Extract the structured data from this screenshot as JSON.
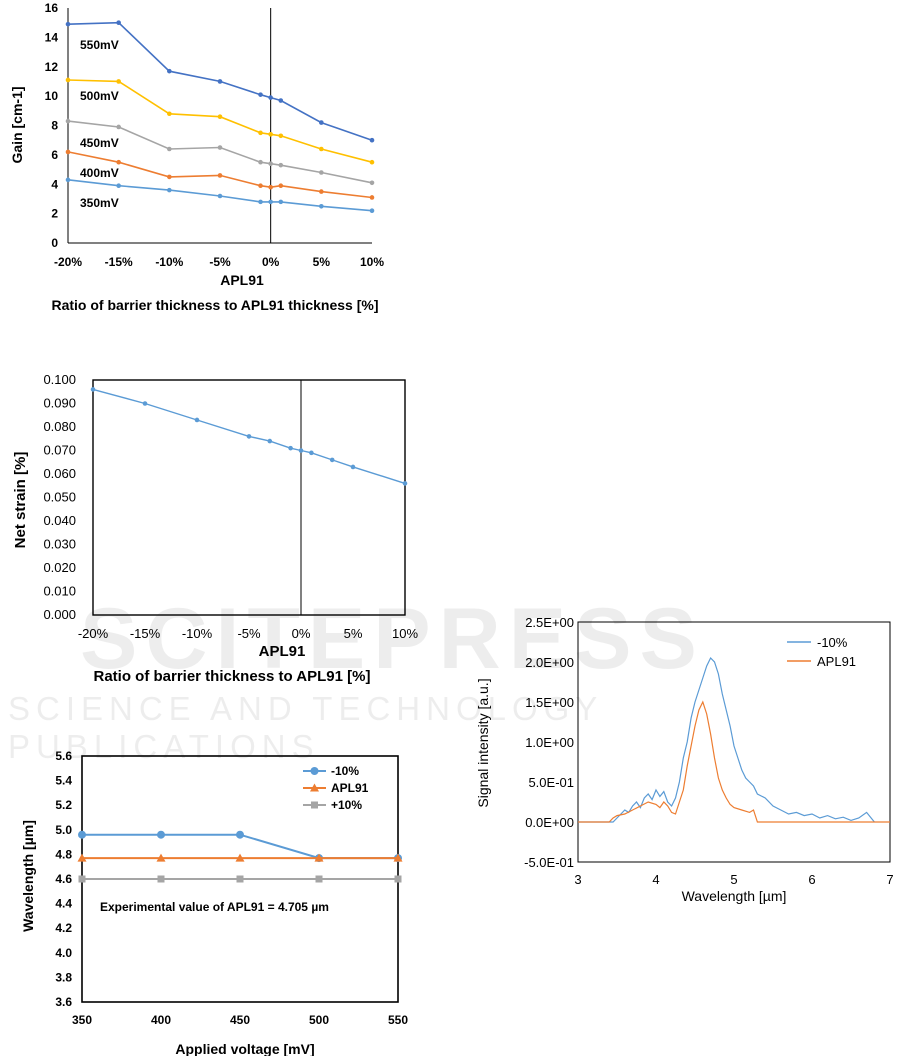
{
  "watermark": {
    "main": "SCITEPRESS",
    "sub": "SCIENCE AND TECHNOLOGY PUBLICATIONS"
  },
  "chart_data": [
    {
      "type": "line",
      "xlabel": "APL91",
      "caption": "Ratio of barrier thickness to APL91 thickness  [%]",
      "ylabel": "Gain [cm-1]",
      "xlim": [
        -20,
        10
      ],
      "ylim": [
        0,
        16
      ],
      "x_ticks": [
        "-20%",
        "-15%",
        "-10%",
        "-5%",
        "0%",
        "5%",
        "10%"
      ],
      "y_ticks": [
        "0",
        "2",
        "4",
        "6",
        "8",
        "10",
        "12",
        "14",
        "16"
      ],
      "reference_line_x": 0,
      "x": [
        -20,
        -15,
        -10,
        -5,
        -1,
        0,
        1,
        5,
        10
      ],
      "series": [
        {
          "name": "550mV",
          "color": "#4472C4",
          "values": [
            14.9,
            15.0,
            11.7,
            11.0,
            10.1,
            9.9,
            9.7,
            8.2,
            7.0
          ]
        },
        {
          "name": "500mV",
          "color": "#FFC000",
          "values": [
            11.1,
            11.0,
            8.8,
            8.6,
            7.5,
            7.4,
            7.3,
            6.4,
            5.5
          ]
        },
        {
          "name": "450mV",
          "color": "#A5A5A5",
          "values": [
            8.3,
            7.9,
            6.4,
            6.5,
            5.5,
            5.4,
            5.3,
            4.8,
            4.1
          ]
        },
        {
          "name": "400mV",
          "color": "#ED7D31",
          "values": [
            6.2,
            5.5,
            4.5,
            4.6,
            3.9,
            3.8,
            3.9,
            3.5,
            3.1
          ]
        },
        {
          "name": "350mV",
          "color": "#5B9BD5",
          "values": [
            4.3,
            3.9,
            3.6,
            3.2,
            2.8,
            2.8,
            2.8,
            2.5,
            2.2
          ]
        }
      ]
    },
    {
      "type": "line",
      "xlabel": "APL91",
      "caption": "Ratio of barrier thickness to APL91 [%]",
      "ylabel": "Net strain [%]",
      "xlim": [
        -20,
        10
      ],
      "ylim": [
        0,
        0.1
      ],
      "x_ticks": [
        "-20%",
        "-15%",
        "-10%",
        "-5%",
        "0%",
        "5%",
        "10%"
      ],
      "y_ticks": [
        "0.000",
        "0.010",
        "0.020",
        "0.030",
        "0.040",
        "0.050",
        "0.060",
        "0.070",
        "0.080",
        "0.090",
        "0.100"
      ],
      "reference_line_x": 0,
      "x": [
        -20,
        -15,
        -10,
        -5,
        -3,
        -1,
        0,
        1,
        3,
        5,
        10
      ],
      "series": [
        {
          "color": "#5B9BD5",
          "values": [
            0.096,
            0.09,
            0.083,
            0.076,
            0.074,
            0.071,
            0.07,
            0.069,
            0.066,
            0.063,
            0.056
          ]
        }
      ]
    },
    {
      "type": "line",
      "xlabel": "Applied voltage [mV]",
      "ylabel": "Wavelength [µm]",
      "xlim": [
        350,
        550
      ],
      "ylim": [
        3.6,
        5.6
      ],
      "x_ticks": [
        "350",
        "400",
        "450",
        "500",
        "550"
      ],
      "y_ticks": [
        "3.6",
        "3.8",
        "4.0",
        "4.2",
        "4.4",
        "4.6",
        "4.8",
        "5.0",
        "5.2",
        "5.4",
        "5.6"
      ],
      "annotation": "Experimental value of APL91  = 4.705 µm",
      "legend": "top-right",
      "x": [
        350,
        400,
        450,
        500,
        550
      ],
      "series": [
        {
          "name": "-10%",
          "color": "#5B9BD5",
          "marker": "circle",
          "values": [
            4.96,
            4.96,
            4.96,
            4.77,
            4.77
          ]
        },
        {
          "name": "APL91",
          "color": "#ED7D31",
          "marker": "triangle",
          "values": [
            4.77,
            4.77,
            4.77,
            4.77,
            4.77
          ]
        },
        {
          "name": "+10%",
          "color": "#A5A5A5",
          "marker": "square",
          "values": [
            4.6,
            4.6,
            4.6,
            4.6,
            4.6
          ]
        }
      ]
    },
    {
      "type": "line",
      "xlabel": "Wavelength [µm]",
      "ylabel": "Signal intensity [a.u.]",
      "xlim": [
        3,
        7
      ],
      "ylim": [
        -0.5,
        2.5
      ],
      "x_ticks": [
        "3",
        "4",
        "5",
        "6",
        "7"
      ],
      "y_ticks": [
        "-5.0E-01",
        "0.0E+00",
        "5.0E-01",
        "1.0E+00",
        "1.5E+00",
        "2.0E+00",
        "2.5E+00"
      ],
      "legend": "top-right",
      "series": [
        {
          "name": "-10%",
          "color": "#5B9BD5",
          "x": [
            3.0,
            3.45,
            3.5,
            3.55,
            3.6,
            3.65,
            3.7,
            3.75,
            3.8,
            3.85,
            3.9,
            3.95,
            4.0,
            4.05,
            4.1,
            4.15,
            4.2,
            4.25,
            4.3,
            4.35,
            4.4,
            4.45,
            4.5,
            4.55,
            4.6,
            4.65,
            4.7,
            4.75,
            4.8,
            4.85,
            4.9,
            4.95,
            5.0,
            5.05,
            5.1,
            5.15,
            5.2,
            5.25,
            5.3,
            5.4,
            5.5,
            5.6,
            5.7,
            5.8,
            5.9,
            6.0,
            6.1,
            6.2,
            6.3,
            6.4,
            6.5,
            6.6,
            6.7,
            6.8
          ],
          "values": [
            0.0,
            0.0,
            0.05,
            0.1,
            0.15,
            0.12,
            0.2,
            0.25,
            0.18,
            0.3,
            0.35,
            0.28,
            0.4,
            0.32,
            0.38,
            0.25,
            0.2,
            0.3,
            0.5,
            0.8,
            1.0,
            1.3,
            1.5,
            1.65,
            1.8,
            1.95,
            2.05,
            2.0,
            1.85,
            1.6,
            1.4,
            1.2,
            0.95,
            0.8,
            0.65,
            0.55,
            0.5,
            0.45,
            0.35,
            0.3,
            0.2,
            0.15,
            0.1,
            0.12,
            0.08,
            0.1,
            0.05,
            0.08,
            0.04,
            0.06,
            0.02,
            0.05,
            0.12,
            0.0
          ]
        },
        {
          "name": "APL91",
          "color": "#ED7D31",
          "x": [
            3.0,
            3.4,
            3.45,
            3.5,
            3.6,
            3.7,
            3.8,
            3.9,
            4.0,
            4.05,
            4.1,
            4.15,
            4.2,
            4.25,
            4.3,
            4.35,
            4.4,
            4.45,
            4.5,
            4.55,
            4.6,
            4.65,
            4.7,
            4.75,
            4.8,
            4.85,
            4.9,
            4.95,
            5.0,
            5.1,
            5.2,
            5.25,
            5.3,
            5.4,
            7.0
          ],
          "values": [
            0.0,
            0.0,
            0.05,
            0.08,
            0.1,
            0.15,
            0.2,
            0.25,
            0.22,
            0.18,
            0.25,
            0.2,
            0.12,
            0.1,
            0.25,
            0.4,
            0.7,
            0.95,
            1.2,
            1.4,
            1.5,
            1.35,
            1.1,
            0.8,
            0.55,
            0.4,
            0.3,
            0.22,
            0.18,
            0.15,
            0.12,
            0.15,
            0.0,
            0.0,
            0.0
          ]
        }
      ]
    }
  ]
}
